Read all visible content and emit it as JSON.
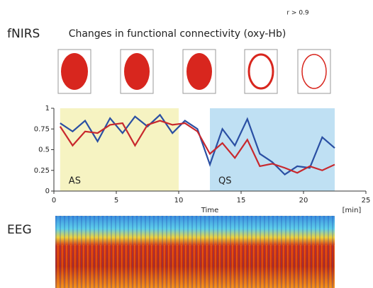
{
  "chart_data": {
    "type": "line",
    "title": "Changes in functional connectivity (oxy-Hb)",
    "threshold_label": "r > 0.9",
    "section_labels": [
      "fNIRS",
      "EEG"
    ],
    "xlabel": "Time",
    "xunit": "[min]",
    "xlim": [
      0,
      25
    ],
    "xticks": [
      0,
      5,
      10,
      15,
      20,
      25
    ],
    "ylim": [
      0,
      1
    ],
    "yticks": [
      0,
      0.25,
      0.5,
      0.75,
      1
    ],
    "regions": [
      {
        "label": "AS",
        "start": 0.5,
        "end": 10,
        "color": "#f6f3c2"
      },
      {
        "label": "QS",
        "start": 12.5,
        "end": 22.5,
        "color": "#bfe0f3"
      }
    ],
    "x": [
      0.5,
      1.5,
      2.5,
      3.5,
      4.5,
      5.5,
      6.5,
      7.5,
      8.5,
      9.5,
      10.5,
      11.5,
      12.5,
      13.5,
      14.5,
      15.5,
      16.5,
      17.5,
      18.5,
      19.5,
      20.5,
      21.5,
      22.5
    ],
    "series": [
      {
        "color": "#2a4fa3",
        "values": [
          0.82,
          0.72,
          0.85,
          0.6,
          0.88,
          0.7,
          0.9,
          0.78,
          0.92,
          0.7,
          0.85,
          0.75,
          0.32,
          0.75,
          0.55,
          0.87,
          0.45,
          0.35,
          0.2,
          0.3,
          0.28,
          0.65,
          0.52
        ]
      },
      {
        "color": "#c8282d",
        "values": [
          0.78,
          0.55,
          0.72,
          0.7,
          0.8,
          0.82,
          0.55,
          0.8,
          0.85,
          0.8,
          0.82,
          0.72,
          0.45,
          0.58,
          0.4,
          0.62,
          0.3,
          0.33,
          0.28,
          0.22,
          0.3,
          0.25,
          0.32
        ]
      }
    ]
  }
}
